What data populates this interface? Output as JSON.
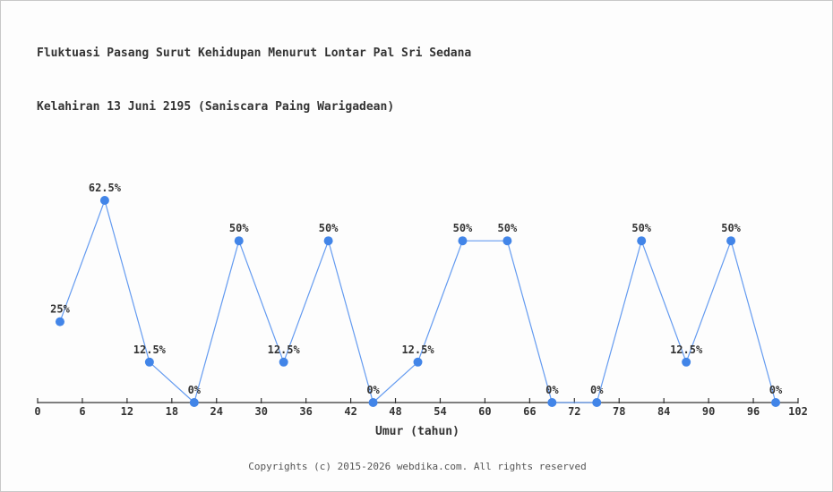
{
  "header": {
    "title_line1": "Fluktuasi Pasang Surut Kehidupan Menurut Lontar Pal Sri Sedana",
    "title_line2": "Kelahiran 13 Juni 2195 (Saniscara Paing Warigadean)"
  },
  "chart_data": {
    "type": "line",
    "x": [
      3,
      9,
      15,
      21,
      27,
      33,
      39,
      45,
      51,
      57,
      63,
      69,
      75,
      81,
      87,
      93,
      99
    ],
    "values": [
      25,
      62.5,
      12.5,
      0,
      50,
      12.5,
      50,
      0,
      12.5,
      50,
      50,
      0,
      0,
      50,
      12.5,
      50,
      0
    ],
    "point_labels": [
      "25%",
      "62.5%",
      "12.5%",
      "0%",
      "50%",
      "12.5%",
      "50%",
      "0%",
      "12.5%",
      "50%",
      "50%",
      "0%",
      "0%",
      "50%",
      "12.5%",
      "50%",
      "0%"
    ],
    "x_ticks": [
      0,
      6,
      12,
      18,
      24,
      30,
      36,
      42,
      48,
      54,
      60,
      66,
      72,
      78,
      84,
      90,
      96,
      102
    ],
    "xlabel": "Umur (tahun)",
    "xlim": [
      0,
      102
    ],
    "ylim": [
      0,
      70
    ],
    "grid": false,
    "legend": "none",
    "colors": {
      "marker": "#4285e8",
      "line": "#649bf0",
      "axis": "#333333",
      "label": "#333333"
    }
  },
  "footer": {
    "copyright": "Copyrights (c) 2015-2026 webdika.com. All rights reserved"
  }
}
